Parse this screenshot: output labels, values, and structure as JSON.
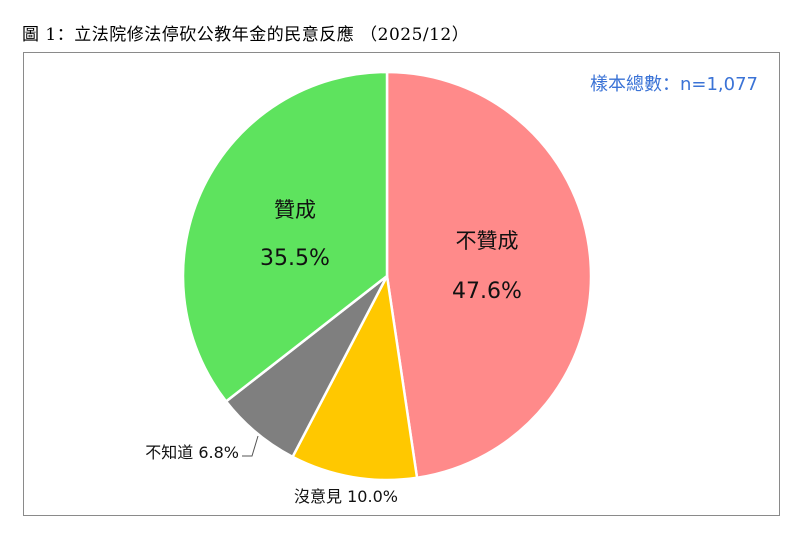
{
  "figure": {
    "title": "圖 1：立法院修法停砍公教年金的民意反應 （2025/12）",
    "sample_size": "樣本總數：n=1,077"
  },
  "chart_data": {
    "type": "pie",
    "title": "圖 1：立法院修法停砍公教年金的民意反應 （2025/12）",
    "annotation": "樣本總數：n=1,077",
    "slices": [
      {
        "label": "不贊成",
        "value": 47.6,
        "display": "47.6%",
        "color": "#ff8a8a",
        "label_position": "inside"
      },
      {
        "label": "沒意見",
        "value": 10.0,
        "display": "沒意見 10.0%",
        "color": "#ffc800",
        "label_position": "outside"
      },
      {
        "label": "不知道",
        "value": 6.8,
        "display": "不知道 6.8%",
        "color": "#7f7f7f",
        "label_position": "outside"
      },
      {
        "label": "贊成",
        "value": 35.5,
        "display": "35.5%",
        "color": "#5ee35e",
        "label_position": "inside"
      }
    ],
    "start_angle": "12 o'clock",
    "direction": "clockwise"
  }
}
